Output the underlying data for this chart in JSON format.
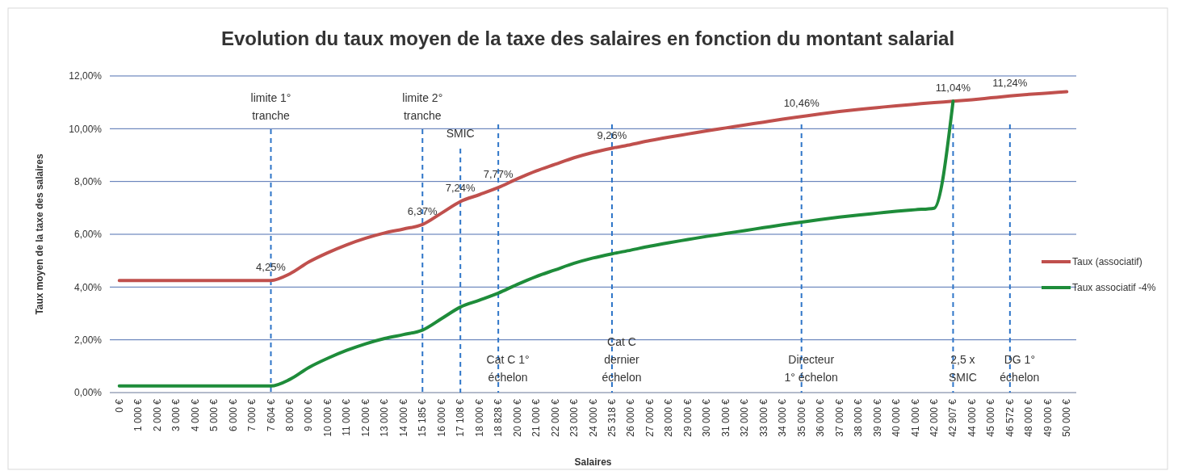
{
  "chart_data": {
    "type": "line",
    "title": "Evolution du taux moyen de la taxe des salaires en fonction du montant salarial",
    "xlabel": "Salaires",
    "ylabel": "Taux moyen de la taxe des salaires",
    "categories": [
      "0 €",
      "1 000 €",
      "2 000 €",
      "3 000 €",
      "4 000 €",
      "5 000 €",
      "6 000 €",
      "7 000 €",
      "7 604 €",
      "8 000 €",
      "9 000 €",
      "10 000 €",
      "11 000 €",
      "12 000 €",
      "13 000 €",
      "14 000 €",
      "15 185 €",
      "16 000 €",
      "17 108 €",
      "18 000 €",
      "18 828 €",
      "20 000 €",
      "21 000 €",
      "22 000 €",
      "23 000 €",
      "24 000 €",
      "25 318 €",
      "26 000 €",
      "27 000 €",
      "28 000 €",
      "29 000 €",
      "30 000 €",
      "31 000 €",
      "32 000 €",
      "33 000 €",
      "34 000 €",
      "35 000 €",
      "36 000 €",
      "37 000 €",
      "38 000 €",
      "39 000 €",
      "40 000 €",
      "41 000 €",
      "42 000 €",
      "42 907 €",
      "44 000 €",
      "45 000 €",
      "46 572 €",
      "48 000 €",
      "49 000 €",
      "50 000 €"
    ],
    "series": [
      {
        "name": "Taux (associatif)",
        "color": "#c0504d",
        "values": [
          4.25,
          4.25,
          4.25,
          4.25,
          4.25,
          4.25,
          4.25,
          4.25,
          4.25,
          4.5,
          4.95,
          5.3,
          5.6,
          5.85,
          6.05,
          6.2,
          6.37,
          6.8,
          7.24,
          7.5,
          7.77,
          8.1,
          8.4,
          8.65,
          8.9,
          9.1,
          9.26,
          9.4,
          9.55,
          9.68,
          9.8,
          9.92,
          10.03,
          10.14,
          10.25,
          10.36,
          10.46,
          10.56,
          10.65,
          10.73,
          10.8,
          10.87,
          10.93,
          10.99,
          11.04,
          11.1,
          11.17,
          11.24,
          11.3,
          11.35,
          11.4
        ]
      },
      {
        "name": "Taux associatif -4%",
        "color": "#1e8c3a",
        "values": [
          0.25,
          0.25,
          0.25,
          0.25,
          0.25,
          0.25,
          0.25,
          0.25,
          0.25,
          0.5,
          0.95,
          1.3,
          1.6,
          1.85,
          2.05,
          2.2,
          2.37,
          2.8,
          3.24,
          3.5,
          3.77,
          4.1,
          4.4,
          4.65,
          4.9,
          5.1,
          5.26,
          5.4,
          5.55,
          5.68,
          5.8,
          5.92,
          6.03,
          6.14,
          6.25,
          6.36,
          6.46,
          6.56,
          6.65,
          6.73,
          6.8,
          6.87,
          6.93,
          6.99,
          11.04,
          null,
          null,
          null,
          null,
          null,
          null
        ]
      }
    ],
    "ylim": [
      0,
      12
    ],
    "yticks": [
      {
        "value": 0,
        "label": "0,00%"
      },
      {
        "value": 2,
        "label": "2,00%"
      },
      {
        "value": 4,
        "label": "4,00%"
      },
      {
        "value": 6,
        "label": "6,00%"
      },
      {
        "value": 8,
        "label": "8,00%"
      },
      {
        "value": 10,
        "label": "10,00%"
      },
      {
        "value": 12,
        "label": "12,00%"
      }
    ],
    "grid": "y",
    "legend": "right",
    "marker": "none",
    "line_style": "solid",
    "ref_lines": [
      {
        "axis": "x",
        "value": "7 604 €",
        "label": "limite 1° tranche",
        "color": "#2e75c8",
        "line_style": "dashed"
      },
      {
        "axis": "x",
        "value": "15 185 €",
        "label": "limite 2° tranche",
        "color": "#2e75c8",
        "line_style": "dashed"
      },
      {
        "axis": "x",
        "value": "17 108 €",
        "label": "SMIC",
        "color": "#2e75c8",
        "line_style": "dashed"
      },
      {
        "axis": "x",
        "value": "18 828 €",
        "label": "Cat C 1° échelon",
        "color": "#2e75c8",
        "line_style": "dashed"
      },
      {
        "axis": "x",
        "value": "25 318 €",
        "label": "Cat C dernier échelon",
        "color": "#2e75c8",
        "line_style": "dashed"
      },
      {
        "axis": "x",
        "value": "35 000 €",
        "label": "Directeur 1° échelon",
        "color": "#2e75c8",
        "line_style": "dashed"
      },
      {
        "axis": "x",
        "value": "42 907 €",
        "label": "2,5 x SMIC",
        "color": "#2e75c8",
        "line_style": "dashed"
      },
      {
        "axis": "x",
        "value": "46 572 €",
        "label": "DG 1° échelon",
        "color": "#2e75c8",
        "line_style": "dashed"
      }
    ],
    "annotations": [
      {
        "text": "4,25%",
        "x": "7 604 €",
        "y": 4.25
      },
      {
        "text": "6,37%",
        "x": "15 185 €",
        "y": 6.37
      },
      {
        "text": "7,24%",
        "x": "17 108 €",
        "y": 7.24
      },
      {
        "text": "7,77%",
        "x": "18 828 €",
        "y": 7.77
      },
      {
        "text": "9,26%",
        "x": "25 318 €",
        "y": 9.26
      },
      {
        "text": "10,46%",
        "x": "35 000 €",
        "y": 10.46
      },
      {
        "text": "11,04%",
        "x": "42 907 €",
        "y": 11.04
      },
      {
        "text": "11,24%",
        "x": "46 572 €",
        "y": 11.24
      }
    ]
  }
}
